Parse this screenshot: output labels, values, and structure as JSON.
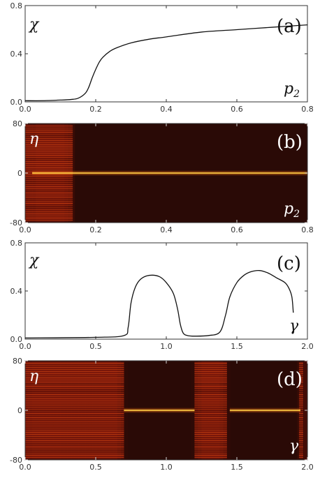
{
  "chart_data": [
    {
      "panel": "(a)",
      "type": "line",
      "ylabel": "χ",
      "xlabel": "p",
      "xlabel_sub": "2",
      "xlim": [
        0,
        0.8
      ],
      "ylim": [
        0,
        0.8
      ],
      "xticks": [
        "0.0",
        "0.2",
        "0.4",
        "0.6",
        "0.8"
      ],
      "yticks": [
        "0.0",
        "0.4",
        "0.8"
      ],
      "series": [
        {
          "x": [
            0.0,
            0.05,
            0.1,
            0.13,
            0.15,
            0.17,
            0.18,
            0.19,
            0.2,
            0.21,
            0.22,
            0.24,
            0.26,
            0.3,
            0.35,
            0.4,
            0.5,
            0.6,
            0.7,
            0.8
          ],
          "y": [
            0.01,
            0.01,
            0.015,
            0.02,
            0.03,
            0.07,
            0.12,
            0.2,
            0.27,
            0.33,
            0.37,
            0.42,
            0.45,
            0.49,
            0.52,
            0.54,
            0.58,
            0.6,
            0.62,
            0.64
          ]
        }
      ]
    },
    {
      "panel": "(b)",
      "type": "heatmap",
      "ylabel": "η",
      "xlabel": "p",
      "xlabel_sub": "2",
      "xlim": [
        0,
        0.8
      ],
      "ylim": [
        -80,
        80
      ],
      "xticks": [
        "0.0",
        "0.2",
        "0.4",
        "0.6",
        "0.8"
      ],
      "yticks": [
        "80",
        "0",
        "-80"
      ],
      "bright_line_eta": 0,
      "bright_line_from_x": 0.02,
      "striped_region_x": [
        0,
        0.14
      ],
      "colormap": [
        "#2a0a06",
        "#5a0f08",
        "#a3210f",
        "#e55c12",
        "#ffd34a"
      ]
    },
    {
      "panel": "(c)",
      "type": "line",
      "ylabel": "χ",
      "xlabel": "γ",
      "xlim": [
        0,
        2.0
      ],
      "ylim": [
        0,
        0.8
      ],
      "xticks": [
        "0.0",
        "0.5",
        "1.0",
        "1.5",
        "2.0"
      ],
      "yticks": [
        "0.0",
        "0.4",
        "0.8"
      ],
      "series": [
        {
          "x": [
            0.0,
            0.5,
            0.7,
            0.73,
            0.75,
            0.78,
            0.82,
            0.88,
            0.95,
            1.0,
            1.05,
            1.08,
            1.1,
            1.12,
            1.15,
            1.2,
            1.3,
            1.38,
            1.42,
            1.45,
            1.5,
            1.55,
            1.6,
            1.66,
            1.72,
            1.78,
            1.84,
            1.87,
            1.89,
            1.9
          ],
          "y": [
            0.01,
            0.015,
            0.03,
            0.1,
            0.3,
            0.43,
            0.5,
            0.53,
            0.52,
            0.47,
            0.38,
            0.25,
            0.12,
            0.05,
            0.03,
            0.025,
            0.03,
            0.06,
            0.2,
            0.35,
            0.47,
            0.53,
            0.56,
            0.57,
            0.55,
            0.51,
            0.47,
            0.42,
            0.35,
            0.22
          ]
        }
      ]
    },
    {
      "panel": "(d)",
      "type": "heatmap",
      "ylabel": "η",
      "xlabel": "γ",
      "xlim": [
        0,
        2.0
      ],
      "ylim": [
        -80,
        80
      ],
      "xticks": [
        "0.0",
        "0.5",
        "1.0",
        "1.5",
        "2.0"
      ],
      "yticks": [
        "80",
        "0",
        "-80"
      ],
      "bright_line_eta": 0,
      "bright_line_segments": [
        [
          0.7,
          1.2
        ],
        [
          1.45,
          1.95
        ]
      ],
      "dark_regions_x": [
        [
          0.72,
          1.18
        ],
        [
          1.45,
          1.92
        ]
      ],
      "colormap": [
        "#2a0a06",
        "#5a0f08",
        "#a3210f",
        "#e55c12",
        "#ffd34a"
      ]
    }
  ]
}
